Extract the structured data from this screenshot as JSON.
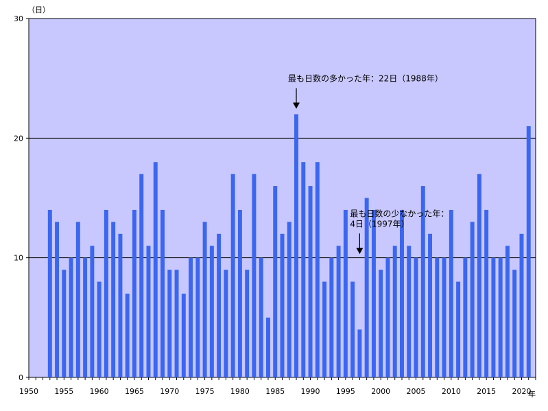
{
  "chart_data": {
    "type": "bar",
    "ylabel": "（日）",
    "xlabel": "年",
    "ylim": [
      0,
      30
    ],
    "xlim": [
      1950,
      2022
    ],
    "grid": true,
    "yticks": [
      0,
      10,
      20,
      30
    ],
    "xticks": [
      1950,
      1955,
      1960,
      1965,
      1970,
      1975,
      1980,
      1985,
      1990,
      1995,
      2000,
      2005,
      2010,
      2015,
      2020
    ],
    "x": [
      1953,
      1954,
      1955,
      1956,
      1957,
      1958,
      1959,
      1960,
      1961,
      1962,
      1963,
      1964,
      1965,
      1966,
      1967,
      1968,
      1969,
      1970,
      1971,
      1972,
      1973,
      1974,
      1975,
      1976,
      1977,
      1978,
      1979,
      1980,
      1981,
      1982,
      1983,
      1984,
      1985,
      1986,
      1987,
      1988,
      1989,
      1990,
      1991,
      1992,
      1993,
      1994,
      1995,
      1996,
      1997,
      1998,
      1999,
      2000,
      2001,
      2002,
      2003,
      2004,
      2005,
      2006,
      2007,
      2008,
      2009,
      2010,
      2011,
      2012,
      2013,
      2014,
      2015,
      2016,
      2017,
      2018,
      2019,
      2020,
      2021
    ],
    "values": [
      14,
      13,
      9,
      10,
      13,
      10,
      11,
      8,
      14,
      13,
      12,
      7,
      14,
      17,
      11,
      18,
      14,
      9,
      9,
      7,
      10,
      10,
      13,
      11,
      12,
      9,
      17,
      14,
      9,
      17,
      10,
      5,
      16,
      12,
      13,
      22,
      18,
      16,
      18,
      8,
      10,
      11,
      14,
      8,
      4,
      15,
      14,
      9,
      10,
      11,
      14,
      11,
      10,
      16,
      12,
      10,
      10,
      14,
      8,
      10,
      13,
      17,
      14,
      10,
      10,
      11,
      9,
      12,
      21
    ],
    "annotations": [
      {
        "year": 1988,
        "lines": [
          "最も日数の多かった年：22日（1988年）"
        ]
      },
      {
        "year": 1997,
        "lines": [
          "最も日数の少なかった年：",
          "4日（1997年）"
        ]
      }
    ],
    "colors": {
      "plot_bg": "#c8c8ff",
      "bar": "#3b66f0"
    }
  }
}
